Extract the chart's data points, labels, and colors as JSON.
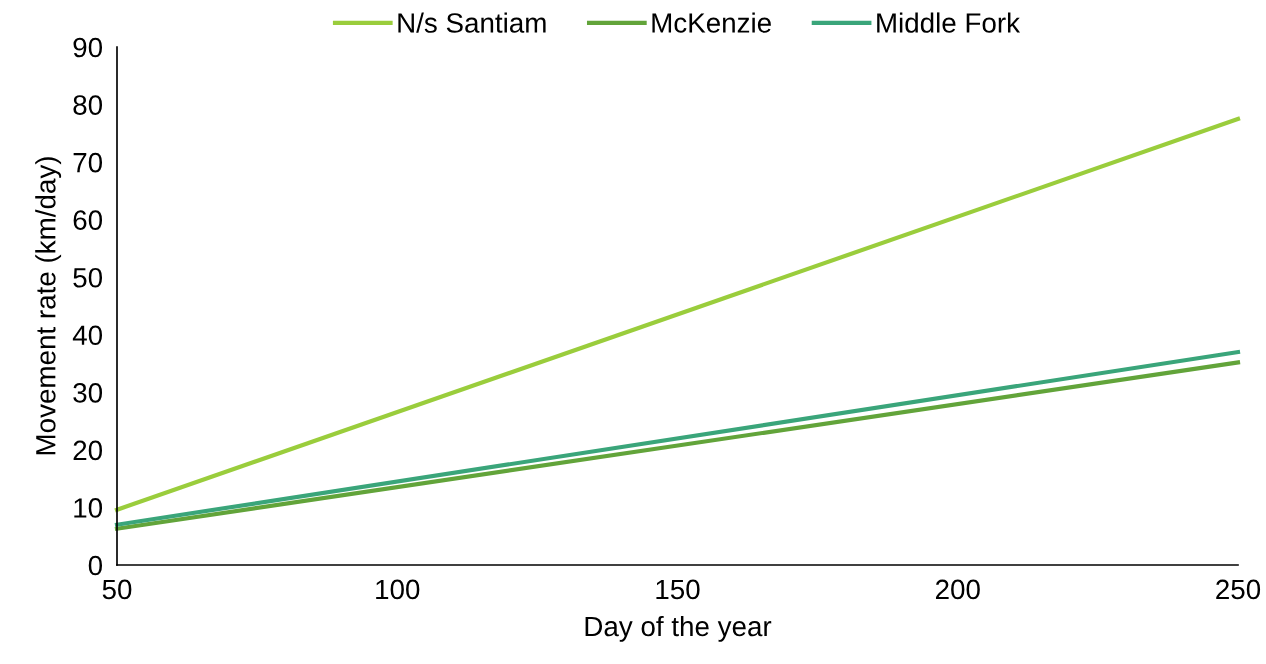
{
  "chart_data": {
    "type": "line",
    "xlabel": "Day of the year",
    "ylabel": "Movement rate (km/day)",
    "x": [
      50,
      250
    ],
    "xlim": [
      50,
      250
    ],
    "xticks": [
      50,
      100,
      150,
      200,
      250
    ],
    "ylim": [
      0,
      90
    ],
    "yticks": [
      0,
      10,
      20,
      30,
      40,
      50,
      60,
      70,
      80,
      90
    ],
    "grid": false,
    "legend": "top",
    "marker": "none",
    "line_style": "solid",
    "series": [
      {
        "name": "N/s Santiam",
        "color": "#9acd3c",
        "values": [
          9.6,
          77.5
        ]
      },
      {
        "name": "McKenzie",
        "color": "#62a43a",
        "values": [
          6.3,
          35.2
        ]
      },
      {
        "name": "Middle Fork",
        "color": "#3aa57a",
        "values": [
          7.0,
          37.0
        ]
      }
    ]
  }
}
